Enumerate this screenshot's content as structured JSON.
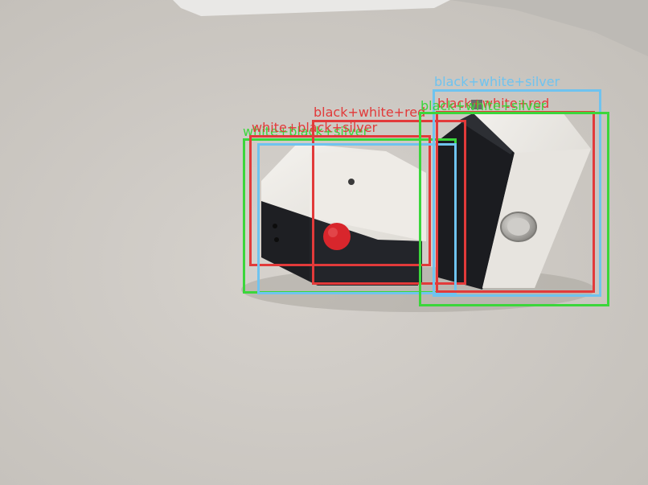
{
  "colors": {
    "floor": "#cfcbc6",
    "box_white": "#ece9e4",
    "box_black": "#1e1f23",
    "button_red": "#d8262c",
    "button_silver": "#b9b7b3",
    "bbox_red": "#e23a3a",
    "bbox_green": "#3bd63b",
    "bbox_light_blue": "#6fc3ef"
  },
  "detections": [
    {
      "id": "det-green-left",
      "label": "white+black+silver",
      "color": "#3bd63b"
    },
    {
      "id": "det-red-left",
      "label": "white+black+silver",
      "color": "#e23a3a"
    },
    {
      "id": "det-red-middle",
      "label": "black+white+red",
      "color": "#e23a3a"
    },
    {
      "id": "det-lightblue-left",
      "label": "",
      "color": "#6fc3ef"
    },
    {
      "id": "det-lightblue-right",
      "label": "black+white+silver",
      "color": "#6fc3ef"
    },
    {
      "id": "det-red-right",
      "label": "black+white+red",
      "color": "#e23a3a"
    },
    {
      "id": "det-green-right",
      "label": "black+white+silver",
      "color": "#3bd63b"
    }
  ]
}
